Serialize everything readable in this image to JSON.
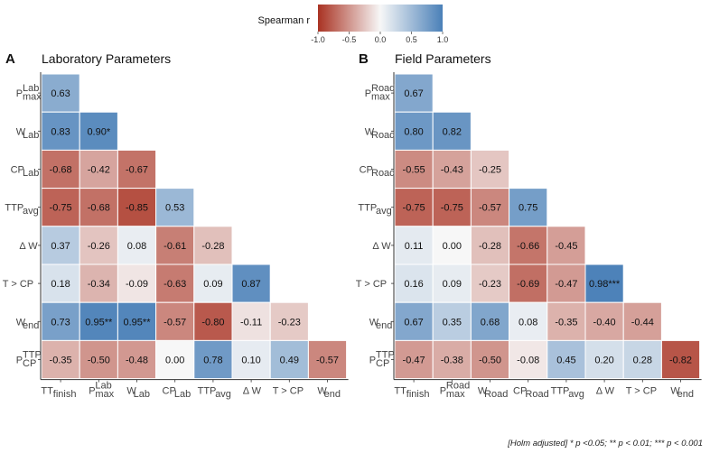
{
  "legend": {
    "title": "Spearman r",
    "ticks": [
      "-1.0",
      "-0.5",
      "0.0",
      "0.5",
      "1.0"
    ],
    "colors": {
      "neg": "#a93222",
      "mid": "#f7f7f7",
      "pos": "#4a80b8"
    }
  },
  "footnote": "[Holm adjusted] * p <0.05; ** p < 0.01; *** p < 0.001",
  "chart_data": [
    {
      "type": "heatmap",
      "panel": "A",
      "title": "Laboratory Parameters",
      "scale": {
        "metric": "Spearman r",
        "limits": [
          -1.0,
          1.0
        ]
      },
      "row_labels": [
        {
          "base": "P",
          "sup": "Lab",
          "sub": "max"
        },
        {
          "base": "W",
          "sub": "Lab"
        },
        {
          "base": "CP",
          "sub": "Lab"
        },
        {
          "base": "TTP",
          "sub": "avg"
        },
        {
          "base": "Δ W"
        },
        {
          "base": "T > CP"
        },
        {
          "base": "W",
          "sub": "end"
        },
        {
          "base": "P",
          "sup": "TTP",
          "sub": "CP"
        }
      ],
      "col_labels": [
        {
          "base": "TT",
          "sub": "finish"
        },
        {
          "base": "P",
          "sup": "Lab",
          "sub": "max"
        },
        {
          "base": "W",
          "sub": "Lab"
        },
        {
          "base": "CP",
          "sub": "Lab"
        },
        {
          "base": "TTP",
          "sub": "avg"
        },
        {
          "base": "Δ W"
        },
        {
          "base": "T > CP"
        },
        {
          "base": "W",
          "sub": "end"
        }
      ],
      "values": [
        [
          0.63
        ],
        [
          0.83,
          0.9
        ],
        [
          -0.68,
          -0.42,
          -0.67
        ],
        [
          -0.75,
          -0.68,
          -0.85,
          0.53
        ],
        [
          0.37,
          -0.26,
          0.08,
          -0.61,
          -0.28
        ],
        [
          0.18,
          -0.34,
          -0.09,
          -0.63,
          0.09,
          0.87
        ],
        [
          0.73,
          0.95,
          0.95,
          -0.57,
          -0.8,
          -0.11,
          -0.23
        ],
        [
          -0.35,
          -0.5,
          -0.48,
          0.0,
          0.78,
          0.1,
          0.49,
          -0.57
        ]
      ],
      "labels": [
        [
          "0.63"
        ],
        [
          "0.83",
          "0.90*"
        ],
        [
          "-0.68",
          "-0.42",
          "-0.67"
        ],
        [
          "-0.75",
          "-0.68",
          "-0.85",
          "0.53"
        ],
        [
          "0.37",
          "-0.26",
          "0.08",
          "-0.61",
          "-0.28"
        ],
        [
          "0.18",
          "-0.34",
          "-0.09",
          "-0.63",
          "0.09",
          "0.87"
        ],
        [
          "0.73",
          "0.95**",
          "0.95**",
          "-0.57",
          "-0.80",
          "-0.11",
          "-0.23"
        ],
        [
          "-0.35",
          "-0.50",
          "-0.48",
          "0.00",
          "0.78",
          "0.10",
          "0.49",
          "-0.57"
        ]
      ]
    },
    {
      "type": "heatmap",
      "panel": "B",
      "title": "Field Parameters",
      "scale": {
        "metric": "Spearman r",
        "limits": [
          -1.0,
          1.0
        ]
      },
      "row_labels": [
        {
          "base": "P",
          "sup": "Road",
          "sub": "max"
        },
        {
          "base": "W",
          "sub": "Road"
        },
        {
          "base": "CP",
          "sub": "Road"
        },
        {
          "base": "TTP",
          "sub": "avg"
        },
        {
          "base": "Δ W"
        },
        {
          "base": "T > CP"
        },
        {
          "base": "W",
          "sub": "end"
        },
        {
          "base": "P",
          "sup": "TTP",
          "sub": "CP"
        }
      ],
      "col_labels": [
        {
          "base": "TT",
          "sub": "finish"
        },
        {
          "base": "P",
          "sup": "Road",
          "sub": "max"
        },
        {
          "base": "W",
          "sub": "Road"
        },
        {
          "base": "CP",
          "sub": "Road"
        },
        {
          "base": "TTP",
          "sub": "avg"
        },
        {
          "base": "Δ W"
        },
        {
          "base": "T > CP"
        },
        {
          "base": "W",
          "sub": "end"
        }
      ],
      "values": [
        [
          0.67
        ],
        [
          0.8,
          0.82
        ],
        [
          -0.55,
          -0.43,
          -0.25
        ],
        [
          -0.75,
          -0.75,
          -0.57,
          0.75
        ],
        [
          0.11,
          0.0,
          -0.28,
          -0.66,
          -0.45
        ],
        [
          0.16,
          0.09,
          -0.23,
          -0.69,
          -0.47,
          0.98
        ],
        [
          0.67,
          0.35,
          0.68,
          0.08,
          -0.35,
          -0.4,
          -0.44
        ],
        [
          -0.47,
          -0.38,
          -0.5,
          -0.08,
          0.45,
          0.2,
          0.28,
          -0.82
        ]
      ],
      "labels": [
        [
          "0.67"
        ],
        [
          "0.80",
          "0.82"
        ],
        [
          "-0.55",
          "-0.43",
          "-0.25"
        ],
        [
          "-0.75",
          "-0.75",
          "-0.57",
          "0.75"
        ],
        [
          "0.11",
          "0.00",
          "-0.28",
          "-0.66",
          "-0.45"
        ],
        [
          "0.16",
          "0.09",
          "-0.23",
          "-0.69",
          "-0.47",
          "0.98***"
        ],
        [
          "0.67",
          "0.35",
          "0.68",
          "0.08",
          "-0.35",
          "-0.40",
          "-0.44"
        ],
        [
          "-0.47",
          "-0.38",
          "-0.50",
          "-0.08",
          "0.45",
          "0.20",
          "0.28",
          "-0.82"
        ]
      ]
    }
  ]
}
